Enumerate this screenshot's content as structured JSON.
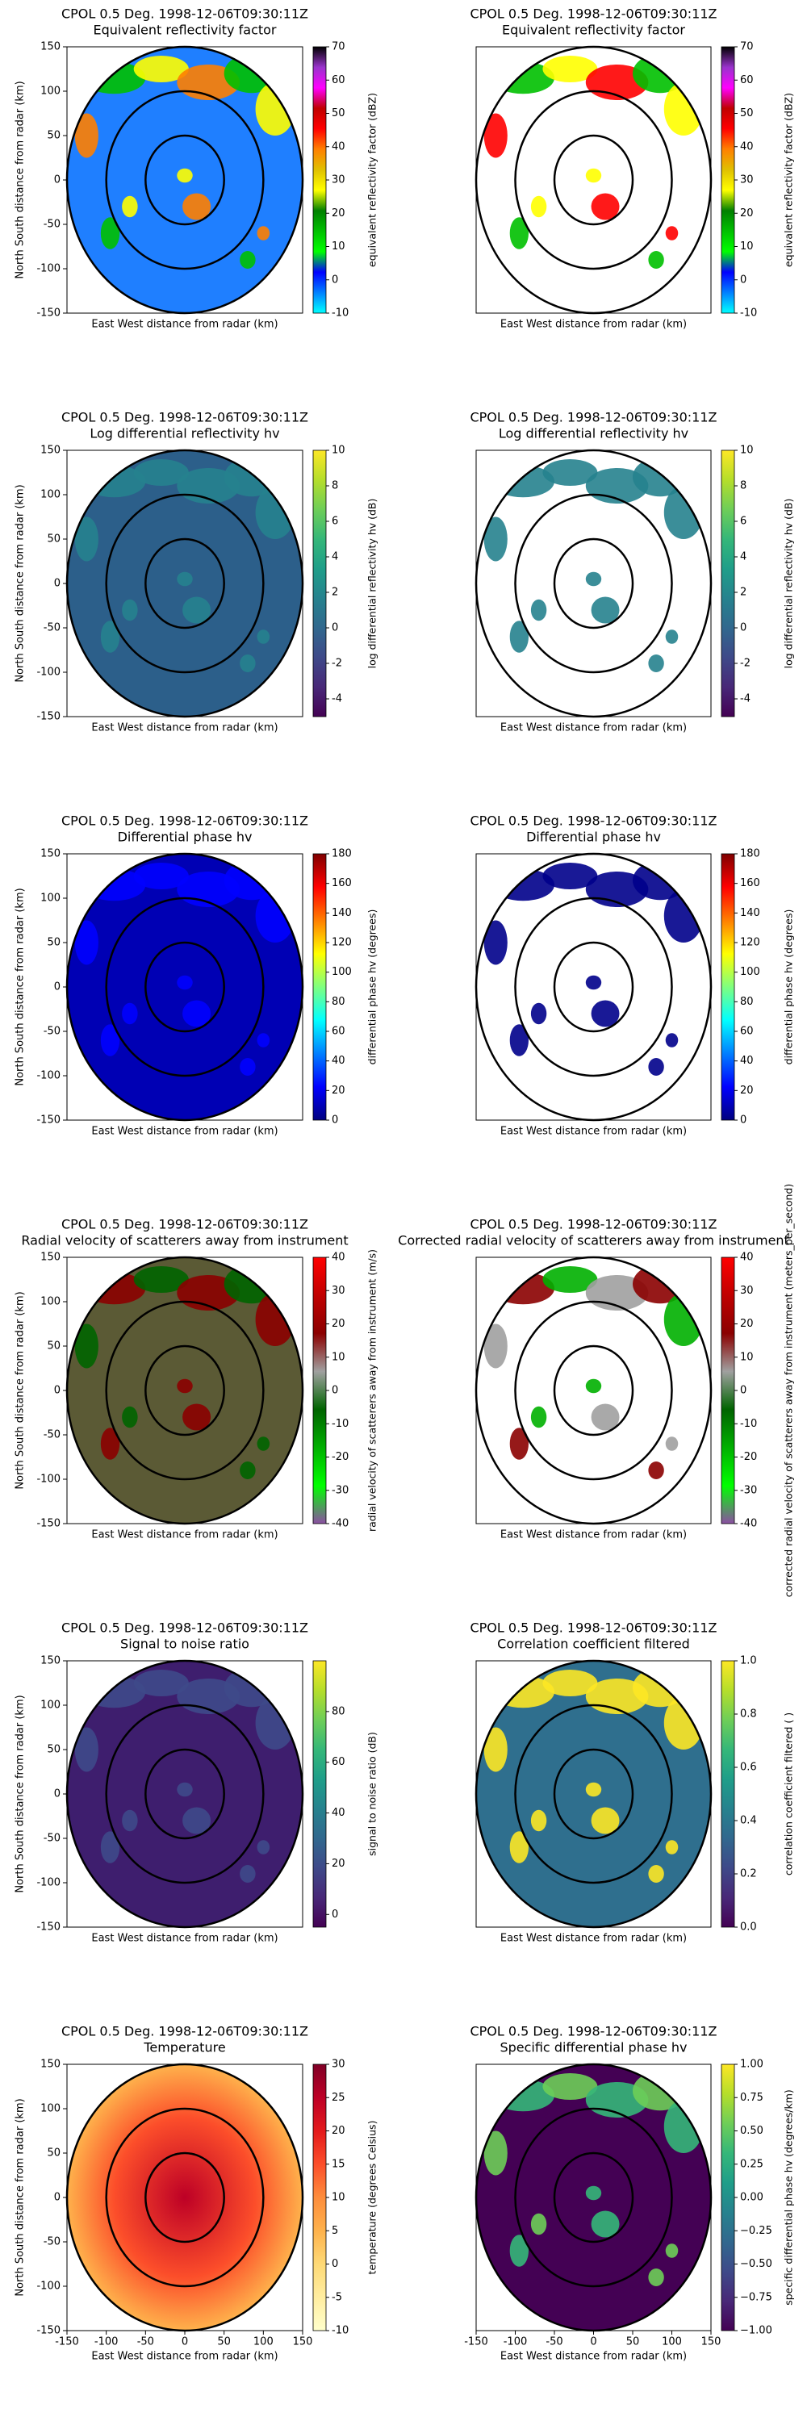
{
  "chart_data": [
    {
      "type": "radar_ppi",
      "title": "CPOL 0.5 Deg. 1998-12-06T09:30:11Z",
      "subtitle": "Equivalent reflectivity factor",
      "xlabel": "East West distance from radar (km)",
      "ylabel": "North South distance from radar (km)",
      "xlim": [
        -150,
        150
      ],
      "ylim": [
        -150,
        150
      ],
      "yticks": [
        -150,
        -100,
        -50,
        0,
        50,
        100,
        150
      ],
      "rings": [
        50,
        100,
        150
      ],
      "colorbar": {
        "label": "equivalent reflectivity factor (dBZ)",
        "lim": [
          -10,
          70
        ],
        "ticks": [
          -10,
          0,
          10,
          20,
          30,
          40,
          50,
          60,
          70
        ],
        "colors": [
          "#00ffff",
          "#0080ff",
          "#0000ff",
          "#00ff00",
          "#00c000",
          "#008000",
          "#ffff00",
          "#e0c000",
          "#ff8000",
          "#ff0000",
          "#c00000",
          "#ff00ff",
          "#9933cc",
          "#000000"
        ]
      }
    },
    {
      "type": "radar_ppi",
      "title": "CPOL 0.5 Deg. 1998-12-06T09:30:11Z",
      "subtitle": "Equivalent reflectivity factor",
      "xlabel": "East West distance from radar (km)",
      "xlim": [
        -150,
        150
      ],
      "ylim": [
        -150,
        150
      ],
      "rings": [
        50,
        100,
        150
      ],
      "colorbar": {
        "label": "equivalent reflectivity factor (dBZ)",
        "lim": [
          -10,
          70
        ],
        "ticks": [
          -10,
          0,
          10,
          20,
          30,
          40,
          50,
          60,
          70
        ],
        "colors": [
          "#00ffff",
          "#0080ff",
          "#0000ff",
          "#00ff00",
          "#00c000",
          "#008000",
          "#ffff00",
          "#e0c000",
          "#ff8000",
          "#ff0000",
          "#c00000",
          "#ff00ff",
          "#9933cc",
          "#000000"
        ]
      }
    },
    {
      "type": "radar_ppi",
      "title": "CPOL 0.5 Deg. 1998-12-06T09:30:11Z",
      "subtitle": "Log differential reflectivity hv",
      "xlabel": "East West distance from radar (km)",
      "ylabel": "North South distance from radar (km)",
      "xlim": [
        -150,
        150
      ],
      "ylim": [
        -150,
        150
      ],
      "yticks": [
        -150,
        -100,
        -50,
        0,
        50,
        100,
        150
      ],
      "rings": [
        50,
        100,
        150
      ],
      "colorbar": {
        "label": "log differential reflectivity hv (dB)",
        "lim": [
          -5,
          10
        ],
        "ticks": [
          -4,
          -2,
          0,
          2,
          4,
          6,
          8,
          10
        ],
        "colors": [
          "#440154",
          "#482878",
          "#3e4989",
          "#31688e",
          "#26828e",
          "#1f9e89",
          "#35b779",
          "#6ece58",
          "#b5de2b",
          "#fde725"
        ]
      }
    },
    {
      "type": "radar_ppi",
      "title": "CPOL 0.5 Deg. 1998-12-06T09:30:11Z",
      "subtitle": "Log differential reflectivity hv",
      "xlabel": "East West distance from radar (km)",
      "xlim": [
        -150,
        150
      ],
      "ylim": [
        -150,
        150
      ],
      "rings": [
        50,
        100,
        150
      ],
      "colorbar": {
        "label": "log differential reflectivity hv (dB)",
        "lim": [
          -5,
          10
        ],
        "ticks": [
          -4,
          -2,
          0,
          2,
          4,
          6,
          8,
          10
        ],
        "colors": [
          "#440154",
          "#482878",
          "#3e4989",
          "#31688e",
          "#26828e",
          "#1f9e89",
          "#35b779",
          "#6ece58",
          "#b5de2b",
          "#fde725"
        ]
      }
    },
    {
      "type": "radar_ppi",
      "title": "CPOL 0.5 Deg. 1998-12-06T09:30:11Z",
      "subtitle": "Differential phase hv",
      "xlabel": "East West distance from radar (km)",
      "ylabel": "North South distance from radar (km)",
      "xlim": [
        -150,
        150
      ],
      "ylim": [
        -150,
        150
      ],
      "yticks": [
        -150,
        -100,
        -50,
        0,
        50,
        100,
        150
      ],
      "rings": [
        50,
        100,
        150
      ],
      "colorbar": {
        "label": "differential phase hv (degrees)",
        "lim": [
          0,
          180
        ],
        "ticks": [
          0,
          20,
          40,
          60,
          80,
          100,
          120,
          140,
          160,
          180
        ],
        "colors": [
          "#00007f",
          "#0000ff",
          "#007fff",
          "#00ffff",
          "#7fff7f",
          "#ffff00",
          "#ff7f00",
          "#ff0000",
          "#7f0000"
        ]
      }
    },
    {
      "type": "radar_ppi",
      "title": "CPOL 0.5 Deg. 1998-12-06T09:30:11Z",
      "subtitle": "Differential phase hv",
      "xlabel": "East West distance from radar (km)",
      "xlim": [
        -150,
        150
      ],
      "ylim": [
        -150,
        150
      ],
      "rings": [
        50,
        100,
        150
      ],
      "colorbar": {
        "label": "differential phase hv (degrees)",
        "lim": [
          0,
          180
        ],
        "ticks": [
          0,
          20,
          40,
          60,
          80,
          100,
          120,
          140,
          160,
          180
        ],
        "colors": [
          "#00007f",
          "#0000ff",
          "#007fff",
          "#00ffff",
          "#7fff7f",
          "#ffff00",
          "#ff7f00",
          "#ff0000",
          "#7f0000"
        ]
      }
    },
    {
      "type": "radar_ppi",
      "title": "CPOL 0.5 Deg. 1998-12-06T09:30:11Z",
      "subtitle": "Radial velocity of scatterers away from instrument",
      "xlabel": "East West distance from radar (km)",
      "ylabel": "North South distance from radar (km)",
      "xlim": [
        -150,
        150
      ],
      "ylim": [
        -150,
        150
      ],
      "yticks": [
        -150,
        -100,
        -50,
        0,
        50,
        100,
        150
      ],
      "rings": [
        50,
        100,
        150
      ],
      "colorbar": {
        "label": "radial velocity of scatterers away from instrument (m/s)",
        "lim": [
          -40,
          40
        ],
        "ticks": [
          -40,
          -30,
          -20,
          -10,
          0,
          10,
          20,
          30,
          40
        ],
        "colors": [
          "#8c4fa3",
          "#00ff00",
          "#00b000",
          "#006400",
          "#a0a0a0",
          "#8b0000",
          "#c00000",
          "#ff0000"
        ]
      }
    },
    {
      "type": "radar_ppi",
      "title": "CPOL 0.5 Deg. 1998-12-06T09:30:11Z",
      "subtitle": "Corrected radial velocity of scatterers away from instrument",
      "xlabel": "East West distance from radar (km)",
      "xlim": [
        -150,
        150
      ],
      "ylim": [
        -150,
        150
      ],
      "rings": [
        50,
        100,
        150
      ],
      "colorbar": {
        "label": "corrected radial velocity of scatterers away from instrument (meters_per_second)",
        "lim": [
          -40,
          40
        ],
        "ticks": [
          -40,
          -30,
          -20,
          -10,
          0,
          10,
          20,
          30,
          40
        ],
        "colors": [
          "#8c4fa3",
          "#00ff00",
          "#00b000",
          "#006400",
          "#a0a0a0",
          "#8b0000",
          "#c00000",
          "#ff0000"
        ]
      }
    },
    {
      "type": "radar_ppi",
      "title": "CPOL 0.5 Deg. 1998-12-06T09:30:11Z",
      "subtitle": "Signal to noise ratio",
      "xlabel": "East West distance from radar (km)",
      "ylabel": "North South distance from radar (km)",
      "xlim": [
        -150,
        150
      ],
      "ylim": [
        -150,
        150
      ],
      "yticks": [
        -150,
        -100,
        -50,
        0,
        50,
        100,
        150
      ],
      "rings": [
        50,
        100,
        150
      ],
      "colorbar": {
        "label": "signal to noise ratio (dB)",
        "lim": [
          -5,
          100
        ],
        "ticks": [
          0,
          20,
          40,
          60,
          80
        ],
        "colors": [
          "#440154",
          "#482878",
          "#3e4989",
          "#31688e",
          "#26828e",
          "#1f9e89",
          "#35b779",
          "#6ece58",
          "#b5de2b",
          "#fde725"
        ]
      }
    },
    {
      "type": "radar_ppi",
      "title": "CPOL 0.5 Deg. 1998-12-06T09:30:11Z",
      "subtitle": "Correlation coefficient filtered",
      "xlabel": "East West distance from radar (km)",
      "xlim": [
        -150,
        150
      ],
      "ylim": [
        -150,
        150
      ],
      "rings": [
        50,
        100,
        150
      ],
      "colorbar": {
        "label": "correlation coefficient filtered ( )",
        "lim": [
          0,
          1
        ],
        "ticks": [
          {
            "value": 0,
            "label": "0.0"
          },
          0.2,
          0.4,
          0.6,
          0.8,
          {
            "value": 1,
            "label": "1.0"
          }
        ],
        "colors": [
          "#440154",
          "#482878",
          "#3e4989",
          "#31688e",
          "#26828e",
          "#1f9e89",
          "#35b779",
          "#6ece58",
          "#b5de2b",
          "#fde725"
        ]
      }
    },
    {
      "type": "radar_ppi",
      "title": "CPOL 0.5 Deg. 1998-12-06T09:30:11Z",
      "subtitle": "Temperature",
      "xlabel": "East West distance from radar (km)",
      "ylabel": "North South distance from radar (km)",
      "xlim": [
        -150,
        150
      ],
      "ylim": [
        -150,
        150
      ],
      "xticks": [
        -150,
        -100,
        -50,
        0,
        50,
        100,
        150
      ],
      "yticks": [
        -150,
        -100,
        -50,
        0,
        50,
        100,
        150
      ],
      "rings": [
        50,
        100,
        150
      ],
      "colorbar": {
        "label": "temperature (degrees Celsius)",
        "lim": [
          -10,
          30
        ],
        "ticks": [
          -10,
          -5,
          0,
          5,
          10,
          15,
          20,
          25,
          30
        ],
        "colors": [
          "#ffffcc",
          "#ffeda0",
          "#fed976",
          "#feb24c",
          "#fd8d3c",
          "#fc4e2a",
          "#e31a1c",
          "#bd0026",
          "#800026"
        ]
      }
    },
    {
      "type": "radar_ppi",
      "title": "CPOL 0.5 Deg. 1998-12-06T09:30:11Z",
      "subtitle": "Specific differential phase hv",
      "xlabel": "East West distance from radar (km)",
      "xlim": [
        -150,
        150
      ],
      "ylim": [
        -150,
        150
      ],
      "xticks": [
        -150,
        -100,
        -50,
        0,
        50,
        100,
        150
      ],
      "rings": [
        50,
        100,
        150
      ],
      "colorbar": {
        "label": "specific differential phase hv (degrees/km)",
        "lim": [
          -1,
          1
        ],
        "ticks": [
          {
            "value": -1,
            "label": "−1.00"
          },
          {
            "value": -0.75,
            "label": "−0.75"
          },
          {
            "value": -0.5,
            "label": "−0.50"
          },
          {
            "value": -0.25,
            "label": "−0.25"
          },
          {
            "value": 0,
            "label": "0.00"
          },
          {
            "value": 0.25,
            "label": "0.25"
          },
          {
            "value": 0.5,
            "label": "0.50"
          },
          {
            "value": 0.75,
            "label": "0.75"
          },
          {
            "value": 1,
            "label": "1.00"
          }
        ],
        "colors": [
          "#440154",
          "#482878",
          "#3e4989",
          "#31688e",
          "#26828e",
          "#1f9e89",
          "#35b779",
          "#6ece58",
          "#b5de2b",
          "#fde725"
        ]
      }
    }
  ]
}
